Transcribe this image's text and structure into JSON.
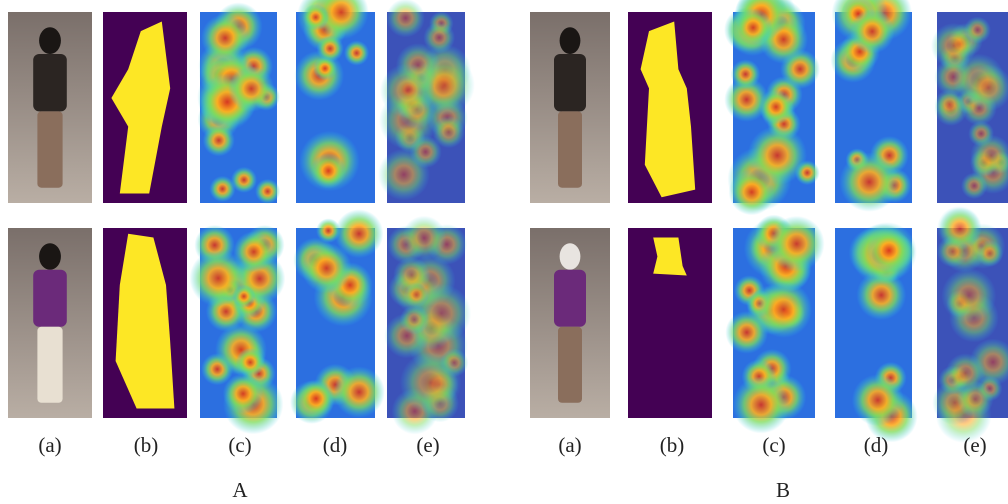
{
  "figure": {
    "groups": [
      {
        "name": "A",
        "columns": [
          "(a)",
          "(b)",
          "(c)",
          "(d)",
          "(e)"
        ]
      },
      {
        "name": "B",
        "columns": [
          "(a)",
          "(b)",
          "(c)",
          "(d)",
          "(e)"
        ]
      }
    ]
  }
}
